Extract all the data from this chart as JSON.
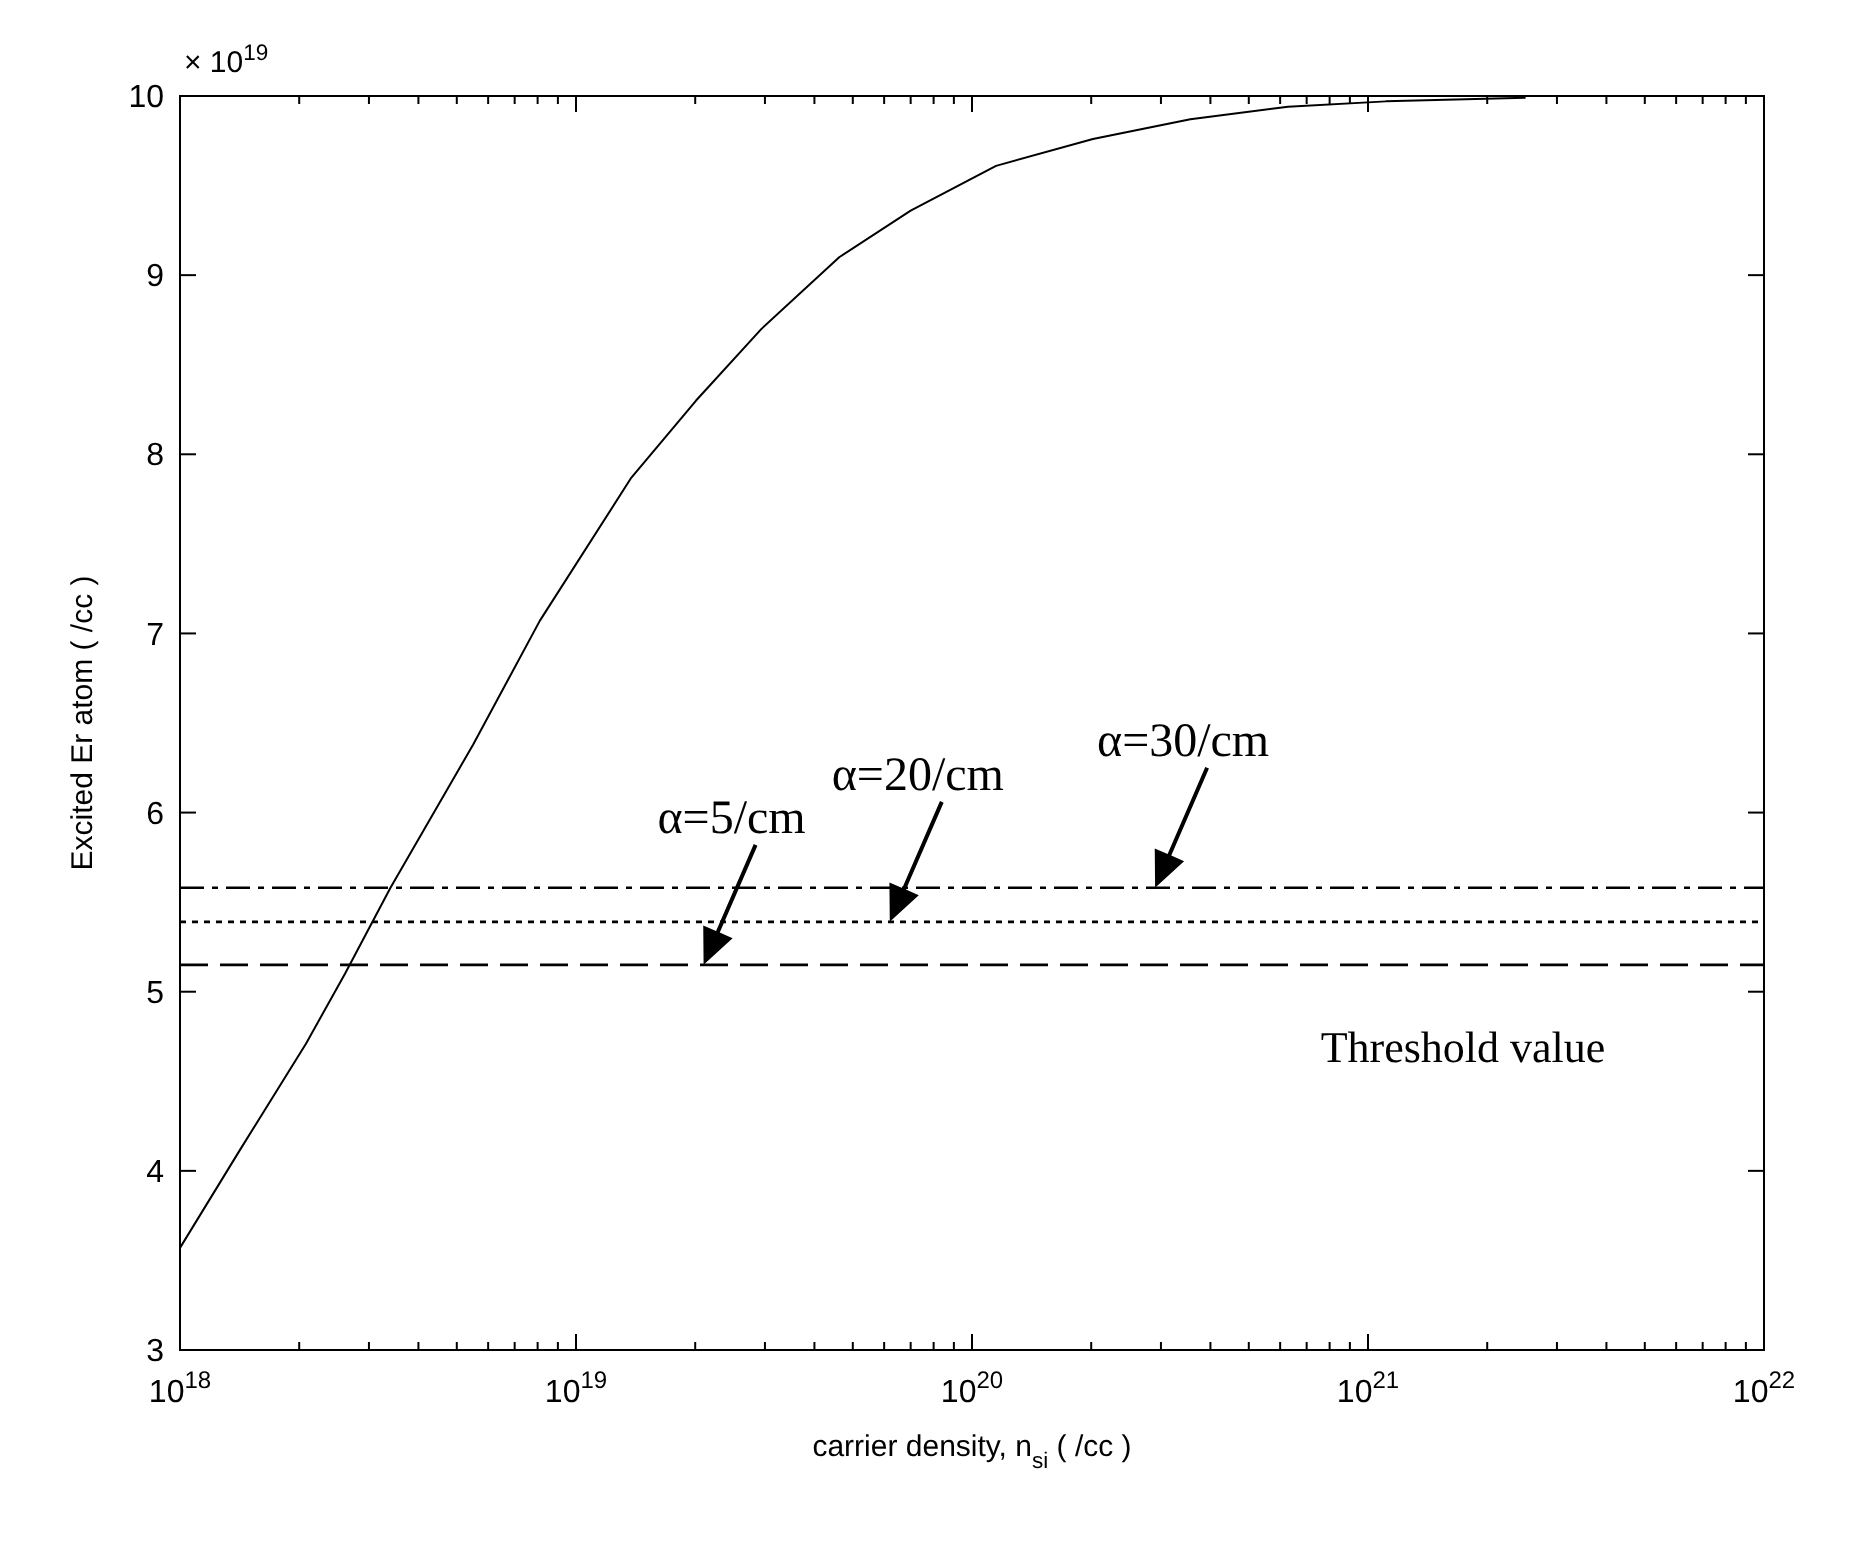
{
  "chart_data": {
    "type": "line",
    "xlabel": "carrier density, n$_{si}$ ( /cc )",
    "ylabel": "Excited Er atom ( /cc )",
    "log": "x",
    "grid": false,
    "xlim": [
      1e+18,
      1e+22
    ],
    "xticks": [
      {
        "value": 1e+18,
        "label": "10$^{18}$"
      },
      {
        "value": 1e+19,
        "label": "10$^{19}$"
      },
      {
        "value": 1e+20,
        "label": "10$^{20}$"
      },
      {
        "value": 1e+21,
        "label": "10$^{21}$"
      },
      {
        "value": 1e+22,
        "label": "10$^{22}$"
      }
    ],
    "ylim": [
      3,
      10
    ],
    "yticks": [
      3,
      4,
      5,
      6,
      7,
      8,
      9,
      10
    ],
    "series": [
      {
        "color": "#000000",
        "line_style": "solid",
        "x": [
          1e+18,
          1.42e+18,
          2.08e+18,
          2.61e+18,
          3.4e+18,
          5.5e+18,
          8.1e+18,
          1.38e+19,
          2.01e+19,
          2.94e+19,
          4.62e+19,
          7e+19,
          1.15e+20,
          2.02e+20,
          3.56e+20,
          6.28e+20,
          1.11e+21,
          2.5e+21
        ],
        "values": [
          3.57,
          4.12,
          4.71,
          5.1,
          5.58,
          6.38,
          7.07,
          7.87,
          8.3,
          8.7,
          9.1,
          9.36,
          9.61,
          9.76,
          9.87,
          9.94,
          9.97,
          9.99
        ]
      }
    ],
    "ref_lines": [
      {
        "axis": "y",
        "value": 5.15,
        "line_style": "dashed",
        "color": "#000000"
      },
      {
        "axis": "y",
        "value": 5.39,
        "line_style": "dotted",
        "color": "#000000"
      },
      {
        "axis": "y",
        "value": 5.58,
        "line_style": "dashdot",
        "color": "#000000"
      }
    ],
    "annotations": [
      "× 10$^{19}$",
      {
        "text": "α=5/cm",
        "x": 2.1e+19,
        "y": 5.15
      },
      {
        "text": "α=20/cm",
        "x": 6.2e+19,
        "y": 5.39
      },
      {
        "text": "α=30/cm",
        "x": 2.9e+20,
        "y": 5.58
      },
      "Threshold value"
    ]
  }
}
